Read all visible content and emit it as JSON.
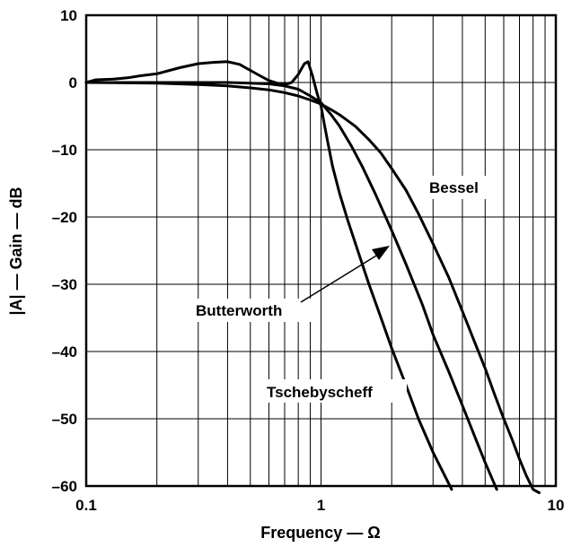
{
  "chart_data": {
    "type": "line",
    "xlabel": "Frequency — Ω",
    "ylabel": "|A| — Gain — dB",
    "xscale": "log",
    "xlim": [
      0.1,
      10
    ],
    "ylim": [
      -60,
      10
    ],
    "grid": true,
    "x_ticks": [
      {
        "value": 0.1,
        "label": "0.1"
      },
      {
        "value": 1,
        "label": "1"
      },
      {
        "value": 10,
        "label": "10"
      }
    ],
    "y_ticks": [
      {
        "value": 10,
        "label": "10"
      },
      {
        "value": 0,
        "label": "0"
      },
      {
        "value": -10,
        "label": "–10"
      },
      {
        "value": -20,
        "label": "–20"
      },
      {
        "value": -30,
        "label": "–30"
      },
      {
        "value": -40,
        "label": "–40"
      },
      {
        "value": -50,
        "label": "–50"
      },
      {
        "value": -60,
        "label": "–60"
      }
    ],
    "series": [
      {
        "name": "Tschebyscheff",
        "x": [
          0.1,
          0.11,
          0.13,
          0.15,
          0.17,
          0.2,
          0.25,
          0.3,
          0.35,
          0.4,
          0.45,
          0.5,
          0.55,
          0.6,
          0.65,
          0.7,
          0.75,
          0.8,
          0.85,
          0.88,
          0.92,
          0.96,
          1.0,
          1.03,
          1.07,
          1.12,
          1.2,
          1.3,
          1.45,
          1.6,
          1.8,
          2.0,
          2.3,
          2.6,
          3.0,
          3.6
        ],
        "values": [
          0,
          0.4,
          0.5,
          0.7,
          1.0,
          1.3,
          2.2,
          2.8,
          3.0,
          3.1,
          2.7,
          1.8,
          1.0,
          0.3,
          -0.1,
          -0.3,
          0.0,
          1.2,
          2.8,
          3.1,
          1.0,
          -1.5,
          -3.5,
          -6.0,
          -9.0,
          -12.5,
          -16.5,
          -20.5,
          -25.5,
          -30.0,
          -35.0,
          -39.5,
          -45.0,
          -50.0,
          -55.0,
          -60.5
        ]
      },
      {
        "name": "Butterworth",
        "x": [
          0.1,
          0.2,
          0.3,
          0.4,
          0.5,
          0.6,
          0.7,
          0.8,
          0.9,
          1.0,
          1.1,
          1.2,
          1.35,
          1.5,
          1.7,
          2.0,
          2.3,
          2.7,
          3.0,
          3.5,
          4.0,
          4.5,
          5.0,
          5.6
        ],
        "values": [
          0,
          0,
          0,
          0,
          -0.1,
          -0.2,
          -0.5,
          -1.0,
          -2.0,
          -3.0,
          -4.7,
          -6.5,
          -9.5,
          -12.5,
          -16.5,
          -22.0,
          -27.0,
          -33.0,
          -37.5,
          -43.0,
          -48.0,
          -52.5,
          -56.5,
          -60.5
        ]
      },
      {
        "name": "Bessel",
        "x": [
          0.1,
          0.2,
          0.3,
          0.4,
          0.5,
          0.6,
          0.7,
          0.8,
          0.9,
          1.0,
          1.1,
          1.2,
          1.4,
          1.6,
          1.8,
          2.0,
          2.3,
          2.6,
          3.0,
          3.5,
          4.0,
          4.5,
          5.0,
          5.5,
          6.0,
          6.5,
          7.0,
          7.5,
          8.0,
          8.5
        ],
        "values": [
          0,
          -0.1,
          -0.3,
          -0.5,
          -0.8,
          -1.1,
          -1.5,
          -2.0,
          -2.6,
          -3.2,
          -4.0,
          -4.8,
          -6.5,
          -8.5,
          -10.5,
          -12.8,
          -16.0,
          -19.5,
          -24.0,
          -29.0,
          -34.0,
          -38.5,
          -42.5,
          -46.5,
          -50.0,
          -53.0,
          -56.0,
          -58.5,
          -60.5,
          -62.0
        ]
      }
    ],
    "annotations": [
      {
        "text": "Bessel"
      },
      {
        "text": "Butterworth"
      },
      {
        "text": "Tschebyscheff"
      }
    ]
  }
}
